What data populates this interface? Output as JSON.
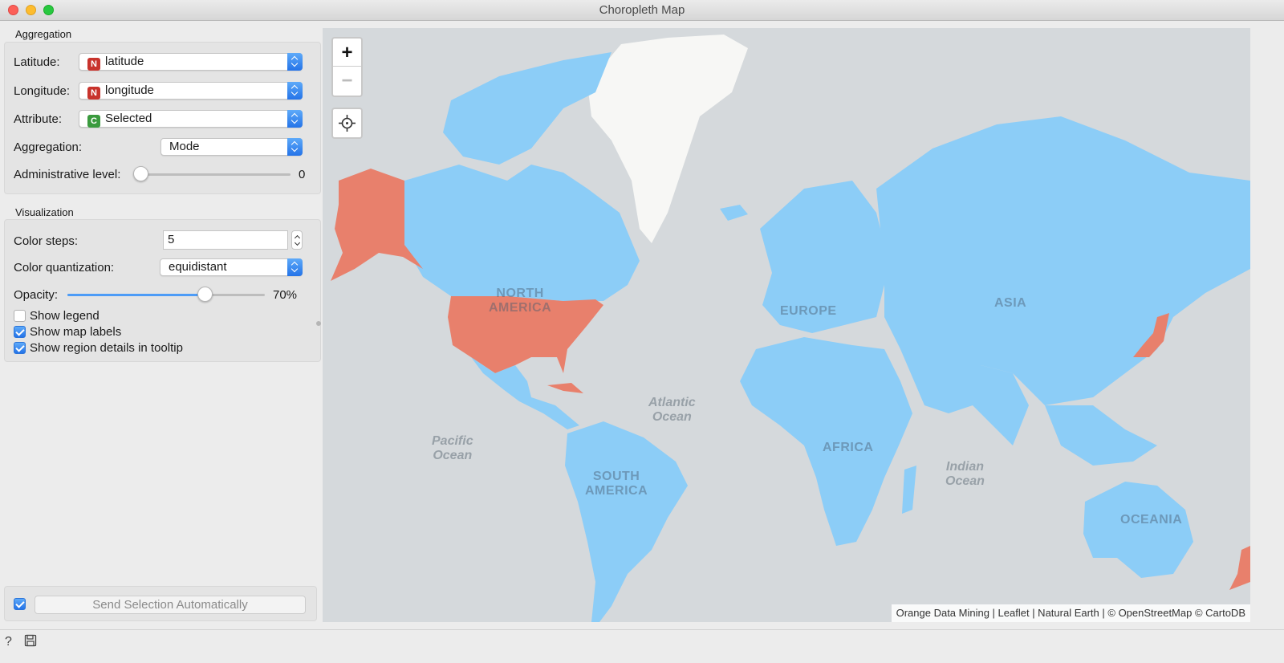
{
  "window": {
    "title": "Choropleth Map"
  },
  "aggregation": {
    "group_title": "Aggregation",
    "latitude": {
      "label": "Latitude:",
      "type_badge": "N",
      "value": "latitude"
    },
    "longitude": {
      "label": "Longitude:",
      "type_badge": "N",
      "value": "longitude"
    },
    "attribute": {
      "label": "Attribute:",
      "type_badge": "C",
      "value": "Selected"
    },
    "aggregation": {
      "label": "Aggregation:",
      "value": "Mode"
    },
    "admin_level": {
      "label": "Administrative level:",
      "value": "0"
    }
  },
  "visualization": {
    "group_title": "Visualization",
    "color_steps": {
      "label": "Color steps:",
      "value": "5"
    },
    "color_quantization": {
      "label": "Color quantization:",
      "value": "equidistant"
    },
    "opacity": {
      "label": "Opacity:",
      "value": "70%",
      "fraction": 0.7
    },
    "show_legend": {
      "label": "Show legend",
      "checked": false
    },
    "show_map_labels": {
      "label": "Show map labels",
      "checked": true
    },
    "show_region_details": {
      "label": "Show region details in tooltip",
      "checked": true
    }
  },
  "send": {
    "label": "Send Selection Automatically",
    "checked": true
  },
  "map": {
    "zoom_in": "+",
    "zoom_out": "−",
    "attribution": "Orange Data Mining | Leaflet | Natural Earth | © OpenStreetMap © CartoDB",
    "labels": {
      "north_america": "NORTH\nAMERICA",
      "south_america": "SOUTH\nAMERICA",
      "europe": "EUROPE",
      "africa": "AFRICA",
      "asia": "ASIA",
      "oceania": "OCEANIA",
      "atlantic": "Atlantic\nOcean",
      "pacific": "Pacific\nOcean",
      "indian": "Indian\nOcean"
    },
    "colors": {
      "selected": "#e8806c",
      "unselected": "#8ccdf7",
      "ocean": "#d5d9dc",
      "greenland": "#f7f7f5"
    }
  },
  "statusbar": {
    "help_icon": "question-icon",
    "save_icon": "floppy-icon"
  }
}
